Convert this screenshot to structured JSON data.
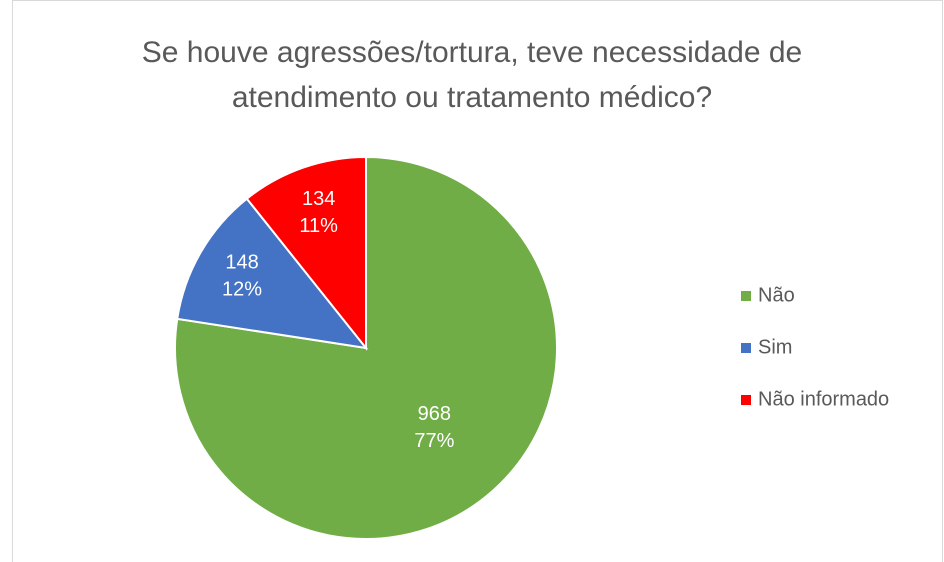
{
  "chart_data": {
    "type": "pie",
    "title": "Se houve agressões/tortura, teve necessidade de atendimento ou tratamento médico?",
    "categories": [
      "Não",
      "Sim",
      "Não informado"
    ],
    "values": [
      968,
      148,
      134
    ],
    "percentages": [
      77,
      12,
      11
    ],
    "percentage_labels": [
      "77%",
      "12%",
      "11%"
    ],
    "colors": [
      "#70ad47",
      "#4472c4",
      "#ff0000"
    ],
    "legend": "right"
  }
}
